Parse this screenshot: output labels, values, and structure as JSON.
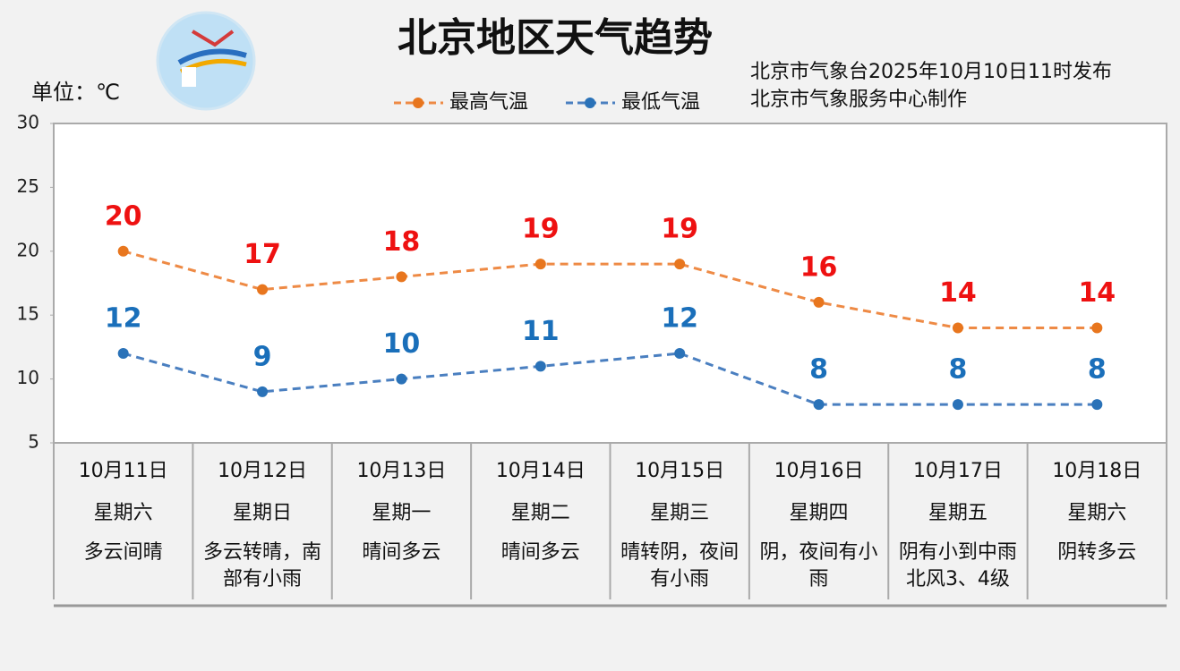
{
  "chart_data": {
    "type": "line",
    "title": "北京地区天气趋势",
    "subtitle": [
      "北京市气象台2025年10月10日11时发布",
      "北京市气象服务中心制作"
    ],
    "unit_label": "单位：℃",
    "categories": [
      "10月11日",
      "10月12日",
      "10月13日",
      "10月14日",
      "10月15日",
      "10月16日",
      "10月17日",
      "10月18日"
    ],
    "weekdays": [
      "星期六",
      "星期日",
      "星期一",
      "星期二",
      "星期三",
      "星期四",
      "星期五",
      "星期六"
    ],
    "weather": [
      "多云间晴",
      "多云转晴，南部有小雨",
      "晴间多云",
      "晴间多云",
      "晴转阴，夜间有小雨",
      "阴，夜间有小雨",
      "阴有小到中雨北风3、4级",
      "阴转多云"
    ],
    "series": [
      {
        "name": "最高气温",
        "color": "#ee8a45",
        "marker_color": "#e8761e",
        "label_color": "#ee1111",
        "values": [
          20,
          17,
          18,
          19,
          19,
          16,
          14,
          14
        ]
      },
      {
        "name": "最低气温",
        "color": "#4a7fc0",
        "marker_color": "#2a72b8",
        "label_color": "#1a6fba",
        "values": [
          12,
          9,
          10,
          11,
          12,
          8,
          8,
          8
        ]
      }
    ],
    "ylim": [
      5,
      30
    ],
    "yticks": [
      5,
      10,
      15,
      20,
      25,
      30
    ]
  }
}
